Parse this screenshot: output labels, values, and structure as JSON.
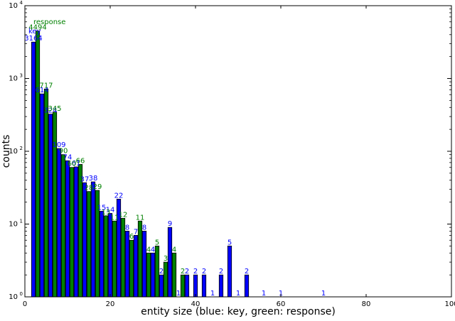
{
  "chart_data": {
    "type": "bar",
    "title": "",
    "xlabel": "entity size (blue: key, green: response)",
    "ylabel": "counts",
    "xlim": [
      0,
      100
    ],
    "ylim": [
      1,
      10000
    ],
    "yscale": "log",
    "grid": false,
    "x_ticks": [
      0,
      20,
      40,
      60,
      80,
      100
    ],
    "y_ticks": [
      1,
      10,
      100,
      1000,
      10000
    ],
    "y_tick_labels": [
      {
        "base": "10",
        "exp": "0"
      },
      {
        "base": "10",
        "exp": "1"
      },
      {
        "base": "10",
        "exp": "2"
      },
      {
        "base": "10",
        "exp": "3"
      },
      {
        "base": "10",
        "exp": "4"
      }
    ],
    "annotations": [
      "response",
      "key"
    ],
    "series": [
      {
        "name": "key",
        "color": "#0000ff",
        "points": [
          {
            "x": 2,
            "y": 3164
          },
          {
            "x": 4,
            "y": 614
          },
          {
            "x": 6,
            "y": 324
          },
          {
            "x": 8,
            "y": 109
          },
          {
            "x": 10,
            "y": 74
          },
          {
            "x": 12,
            "y": 61
          },
          {
            "x": 14,
            "y": 37
          },
          {
            "x": 16,
            "y": 38
          },
          {
            "x": 18,
            "y": 15
          },
          {
            "x": 20,
            "y": 14
          },
          {
            "x": 22,
            "y": 22
          },
          {
            "x": 24,
            "y": 8
          },
          {
            "x": 26,
            "y": 7
          },
          {
            "x": 28,
            "y": 8
          },
          {
            "x": 30,
            "y": 4
          },
          {
            "x": 32,
            "y": 2
          },
          {
            "x": 34,
            "y": 9
          },
          {
            "x": 36,
            "y": 1
          },
          {
            "x": 38,
            "y": 2
          },
          {
            "x": 40,
            "y": 2
          },
          {
            "x": 42,
            "y": 2
          },
          {
            "x": 44,
            "y": 1
          },
          {
            "x": 46,
            "y": 2
          },
          {
            "x": 48,
            "y": 5
          },
          {
            "x": 50,
            "y": 1
          },
          {
            "x": 52,
            "y": 2
          },
          {
            "x": 56,
            "y": 1
          },
          {
            "x": 60,
            "y": 1
          },
          {
            "x": 70,
            "y": 1
          }
        ]
      },
      {
        "name": "response",
        "color": "#008000",
        "points": [
          {
            "x": 3,
            "y": 4494
          },
          {
            "x": 5,
            "y": 717
          },
          {
            "x": 7,
            "y": 345
          },
          {
            "x": 9,
            "y": 90
          },
          {
            "x": 11,
            "y": 60
          },
          {
            "x": 13,
            "y": 66
          },
          {
            "x": 15,
            "y": 28
          },
          {
            "x": 17,
            "y": 29
          },
          {
            "x": 19,
            "y": 13
          },
          {
            "x": 21,
            "y": 11
          },
          {
            "x": 23,
            "y": 12
          },
          {
            "x": 25,
            "y": 6
          },
          {
            "x": 27,
            "y": 11
          },
          {
            "x": 29,
            "y": 4
          },
          {
            "x": 31,
            "y": 5
          },
          {
            "x": 33,
            "y": 3
          },
          {
            "x": 35,
            "y": 4
          },
          {
            "x": 37,
            "y": 2
          }
        ]
      }
    ]
  }
}
